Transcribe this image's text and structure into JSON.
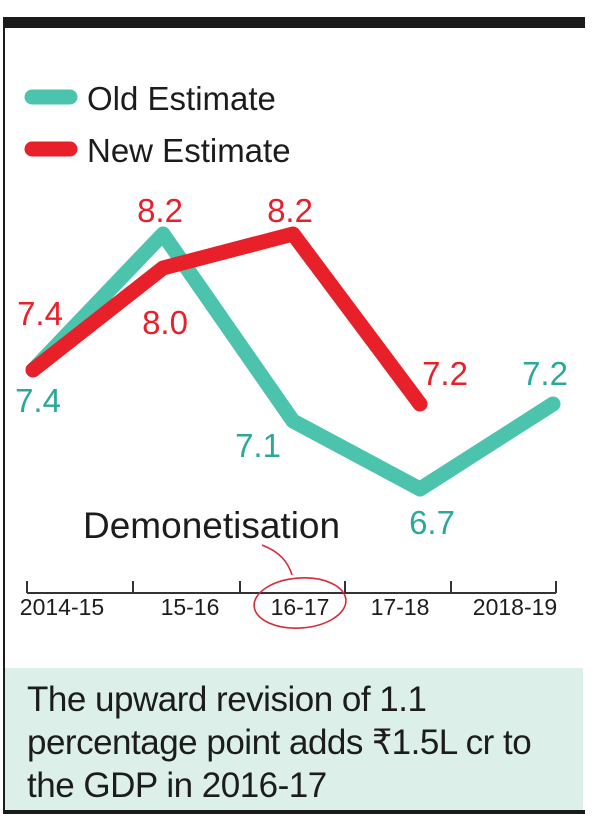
{
  "chart_data": {
    "type": "line",
    "categories": [
      "2014-15",
      "15-16",
      "16-17",
      "17-18",
      "2018-19"
    ],
    "series": [
      {
        "name": "Old Estimate",
        "color": "#4cc3ad",
        "values": [
          7.4,
          8.2,
          7.1,
          6.7,
          7.2
        ]
      },
      {
        "name": "New Estimate",
        "color": "#e8202a",
        "values": [
          7.4,
          8.0,
          8.2,
          7.2,
          null
        ]
      }
    ],
    "data_labels": {
      "old": [
        "7.4",
        "8.2",
        "7.1",
        "6.7",
        "7.2"
      ],
      "new": [
        "7.4",
        "8.0",
        "8.2",
        "7.2"
      ]
    },
    "annotation": "Demonetisation",
    "highlighted_category": "16-17",
    "legend_position": "top-left",
    "grid": false
  },
  "note": "The upward revision of 1.1 percentage point adds ₹1.5L cr to the GDP in 2016-17"
}
